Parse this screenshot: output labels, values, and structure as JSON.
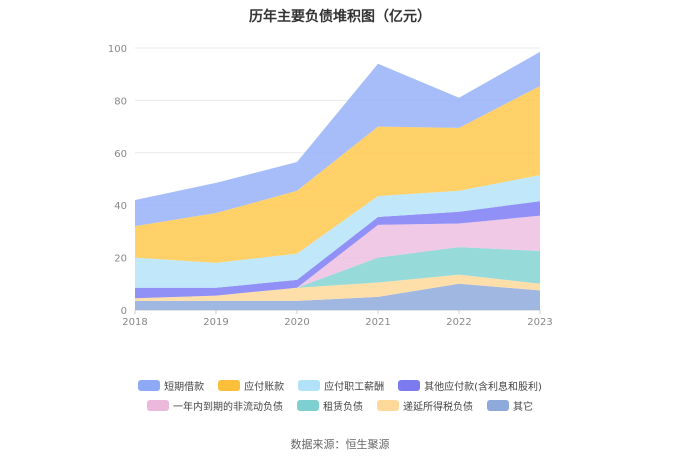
{
  "chart_data": {
    "type": "area",
    "stacked": true,
    "title": "历年主要负债堆积图（亿元）",
    "categories": [
      "2018",
      "2019",
      "2020",
      "2021",
      "2022",
      "2023"
    ],
    "ylim": [
      0,
      100
    ],
    "yticks": [
      "0",
      "20",
      "40",
      "60",
      "80",
      "100"
    ],
    "grid": true,
    "legend_position": "bottom",
    "series": [
      {
        "name": "其它",
        "color": "#8faadc",
        "values": [
          3.5,
          3.5,
          3.5,
          5,
          10,
          7.5
        ]
      },
      {
        "name": "递延所得税负债",
        "color": "#ffd99a",
        "values": [
          1,
          2,
          5,
          5.5,
          3.5,
          2.5
        ]
      },
      {
        "name": "租赁负债",
        "color": "#84d3d3",
        "values": [
          0,
          0,
          0,
          9.5,
          10.5,
          12.5
        ]
      },
      {
        "name": "一年内到期的非流动负债",
        "color": "#ecbfe0",
        "values": [
          0,
          0,
          0,
          12.5,
          9,
          13.5
        ]
      },
      {
        "name": "其他应付款(含利息和股利)",
        "color": "#7c7cf5",
        "values": [
          4,
          3,
          3,
          3,
          4.5,
          5.5
        ]
      },
      {
        "name": "应付职工薪酬",
        "color": "#b6e4f9",
        "values": [
          11.5,
          9.5,
          10,
          8,
          8,
          10
        ]
      },
      {
        "name": "应付账款",
        "color": "#ffc94d",
        "values": [
          12,
          19,
          24,
          26.5,
          24,
          34
        ]
      },
      {
        "name": "短期借款",
        "color": "#97b2f9",
        "values": [
          10,
          11.5,
          11,
          24,
          11.5,
          13
        ]
      }
    ]
  },
  "legend_rows": [
    [
      {
        "label": "短期借款",
        "color": "#8eaaf7"
      },
      {
        "label": "应付账款",
        "color": "#fbbf3a"
      },
      {
        "label": "应付职工薪酬",
        "color": "#b1e2f7"
      },
      {
        "label": "其他应付款(含利息和股利)",
        "color": "#7b7bef"
      }
    ],
    [
      {
        "label": "一年内到期的非流动负债",
        "color": "#ebb9dc"
      },
      {
        "label": "租赁负债",
        "color": "#7ed0d0"
      },
      {
        "label": "递延所得税负债",
        "color": "#ffd99a"
      },
      {
        "label": "其它",
        "color": "#8eaadb"
      }
    ]
  ],
  "source": "数据来源：恒生聚源"
}
